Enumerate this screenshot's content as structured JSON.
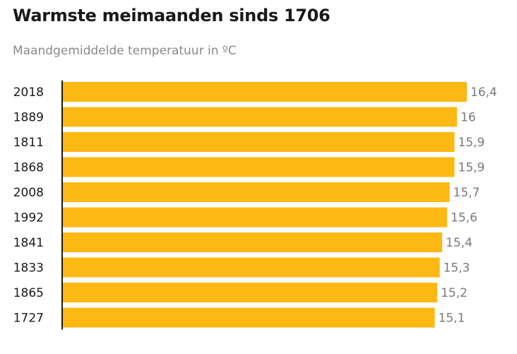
{
  "chart_data": {
    "type": "bar",
    "orientation": "horizontal",
    "title": "Warmste meimaanden sinds 1706",
    "subtitle": "Maandgemiddelde temperatuur in ºC",
    "categories": [
      "2018",
      "1889",
      "1811",
      "1868",
      "2008",
      "1992",
      "1841",
      "1833",
      "1865",
      "1727"
    ],
    "values": [
      16.4,
      16,
      15.9,
      15.9,
      15.7,
      15.6,
      15.4,
      15.3,
      15.2,
      15.1
    ],
    "value_labels": [
      "16,4",
      "16",
      "15,9",
      "15,9",
      "15,7",
      "15,6",
      "15,4",
      "15,3",
      "15,2",
      "15,1"
    ],
    "xlim": [
      0,
      16.4
    ],
    "grid": false,
    "bar_color": "#FDB813",
    "axis_color": "#1a1a1a"
  }
}
